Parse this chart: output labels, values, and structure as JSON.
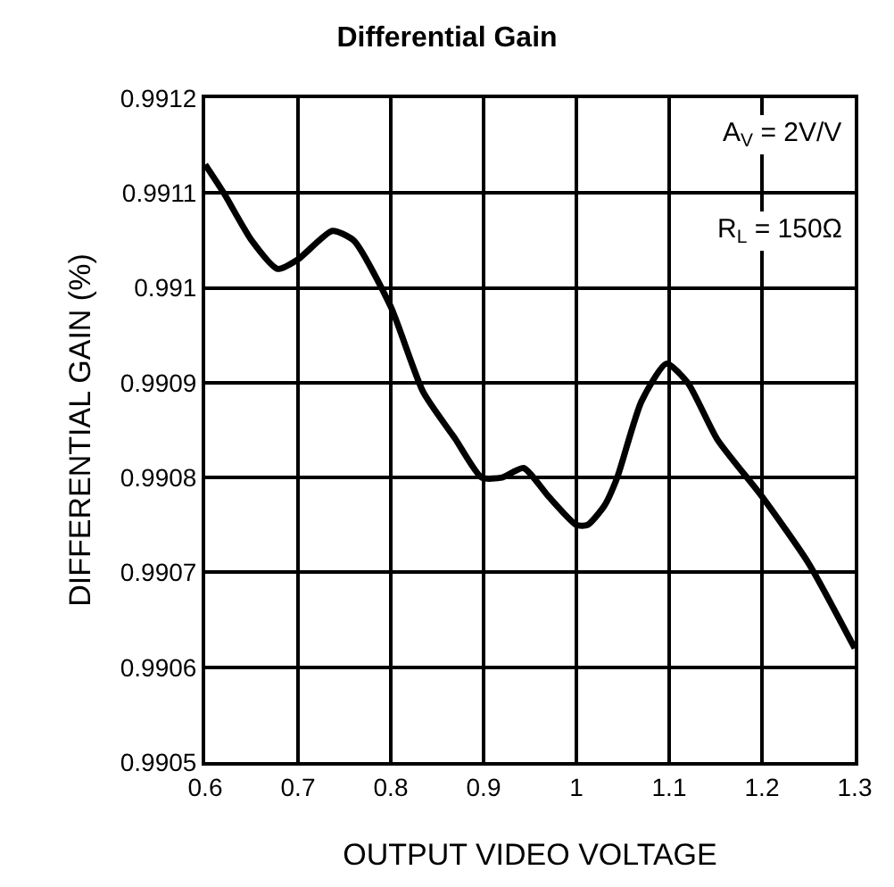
{
  "chart_data": {
    "type": "line",
    "title": "Differential Gain",
    "xlabel": "OUTPUT VIDEO VOLTAGE",
    "ylabel": "DIFFERENTIAL GAIN (%)",
    "annotations": [
      "A$_{V}$ = 2V/V",
      "R$_{L}$ = 150Ω"
    ],
    "x": [
      0.6,
      0.62,
      0.65,
      0.678,
      0.7,
      0.737,
      0.76,
      0.8,
      0.835,
      0.87,
      0.898,
      0.92,
      0.943,
      0.97,
      1.0,
      1.012,
      1.03,
      1.044,
      1.07,
      1.097,
      1.12,
      1.152,
      1.2,
      1.25,
      1.3
    ],
    "series": [
      {
        "color": "#000000",
        "values": [
          0.99113,
          0.9911,
          0.99105,
          0.99102,
          0.99103,
          0.99106,
          0.99105,
          0.99098,
          0.99089,
          0.99084,
          0.9908,
          0.9908,
          0.99081,
          0.99078,
          0.99075,
          0.99075,
          0.99077,
          0.9908,
          0.99088,
          0.99092,
          0.9909,
          0.99084,
          0.99078,
          0.99071,
          0.99062
        ]
      }
    ],
    "xlim": [
      0.6,
      1.3
    ],
    "xticks": [
      0.6,
      0.7,
      0.8,
      0.9,
      1,
      1.1,
      1.2,
      1.3
    ],
    "ylim": [
      0.9905,
      0.9912
    ],
    "yticks": [
      0.9905,
      0.9906,
      0.9907,
      0.9908,
      0.9909,
      0.991,
      0.9911,
      0.9912
    ],
    "grid": true,
    "line_style": "solid",
    "marker": "none"
  }
}
